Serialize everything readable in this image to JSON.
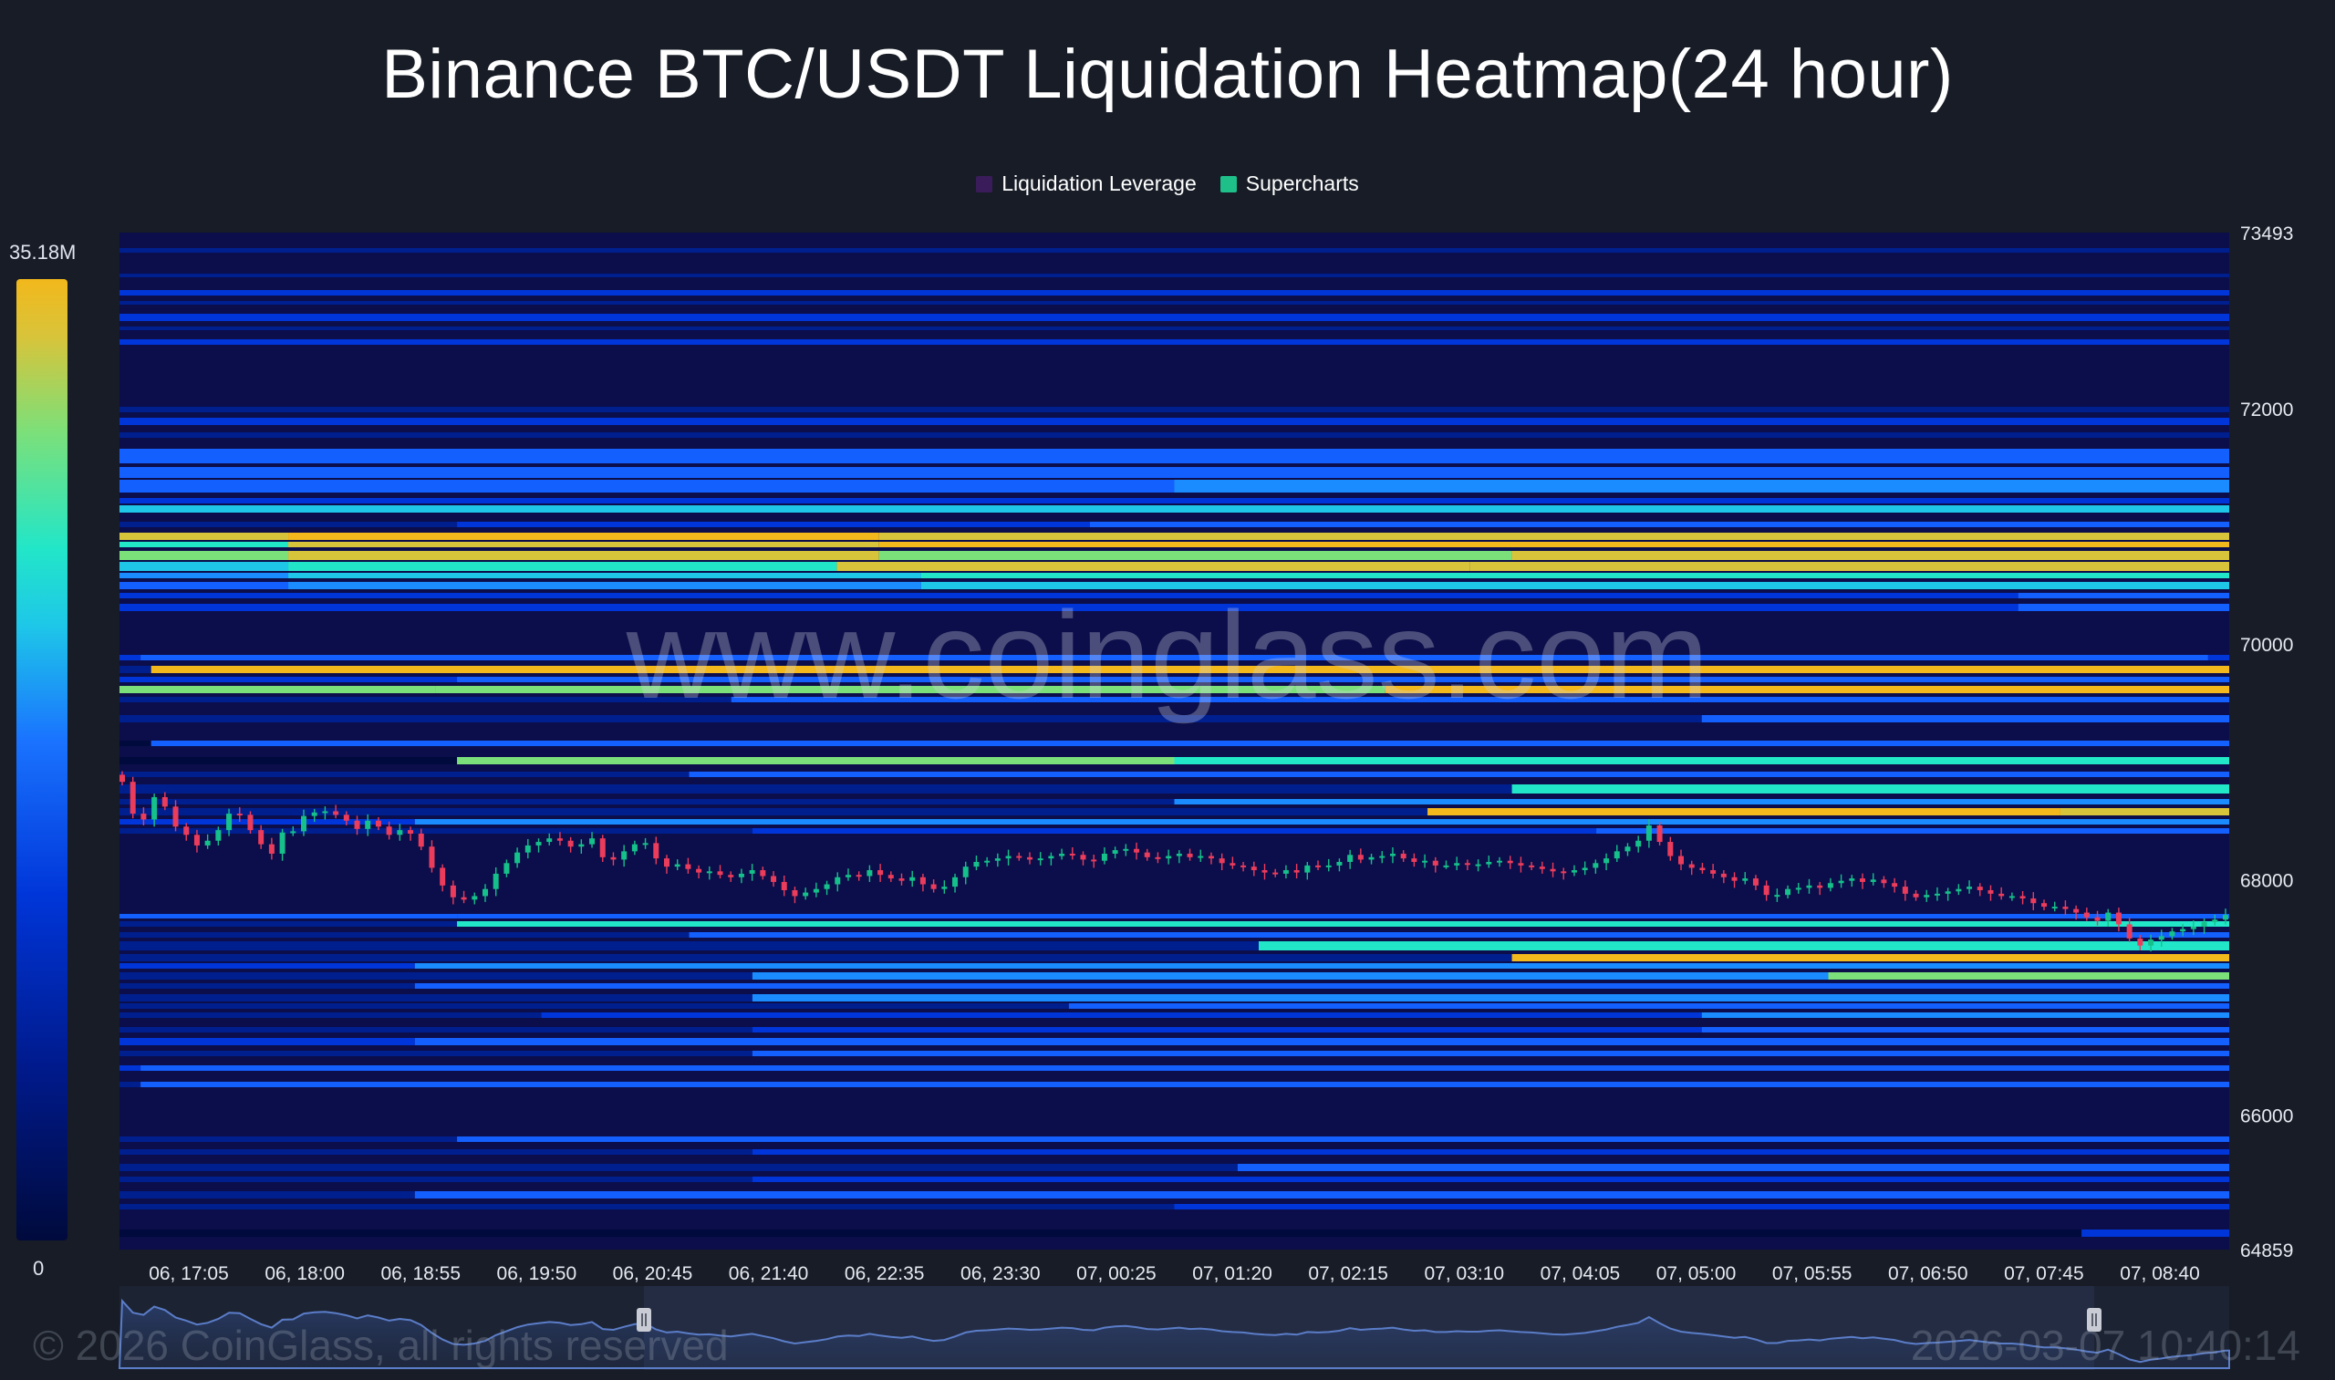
{
  "chart_data": {
    "type": "heatmap",
    "title": "Binance BTC/USDT Liquidation Heatmap(24 hour)",
    "legend": [
      {
        "name": "Liquidation Leverage",
        "color": "#3a1c5a"
      },
      {
        "name": "Supercharts",
        "color": "#1fbf8a"
      }
    ],
    "legend_placement": "top-center",
    "colorbar": {
      "max_label": "35.18M",
      "min_label": "0",
      "min": 0,
      "max": 35180000,
      "colors": [
        "#000a3c",
        "#001a8c",
        "#0036d9",
        "#1a73ff",
        "#1ec7e8",
        "#22e6c8",
        "#7be07a",
        "#d8c43a",
        "#f2b81c"
      ]
    },
    "y_axis": {
      "min": 64859,
      "max": 73493,
      "ticks": [
        "73493",
        "72000",
        "70000",
        "68000",
        "66000",
        "64859"
      ],
      "tick_values": [
        73493,
        72000,
        70000,
        68000,
        66000,
        64859
      ]
    },
    "x_axis": {
      "ticks": [
        "06, 17:05",
        "06, 18:00",
        "06, 18:55",
        "06, 19:50",
        "06, 20:45",
        "06, 21:40",
        "06, 22:35",
        "06, 23:30",
        "07, 00:25",
        "07, 01:20",
        "07, 02:15",
        "07, 03:10",
        "07, 04:05",
        "07, 05:00",
        "07, 05:55",
        "07, 06:50",
        "07, 07:45",
        "07, 08:40"
      ]
    },
    "grid": false,
    "price_close": [
      68830,
      68560,
      68510,
      68700,
      68620,
      68450,
      68380,
      68290,
      68330,
      68420,
      68560,
      68550,
      68420,
      68300,
      68220,
      68400,
      68410,
      68540,
      68570,
      68580,
      68550,
      68500,
      68430,
      68500,
      68450,
      68380,
      68420,
      68390,
      68280,
      68100,
      67950,
      67850,
      67830,
      67860,
      67920,
      68050,
      68140,
      68230,
      68290,
      68320,
      68350,
      68330,
      68280,
      68300,
      68350,
      68190,
      68170,
      68240,
      68300,
      68310,
      68180,
      68110,
      68130,
      68090,
      68060,
      68070,
      68040,
      68020,
      68050,
      68080,
      68030,
      67980,
      67910,
      67860,
      67890,
      67920,
      67960,
      68020,
      68040,
      68030,
      68080,
      68040,
      68010,
      67990,
      68020,
      67960,
      67920,
      67940,
      68020,
      68110,
      68150,
      68160,
      68180,
      68200,
      68190,
      68170,
      68180,
      68200,
      68220,
      68210,
      68170,
      68160,
      68220,
      68250,
      68260,
      68230,
      68190,
      68180,
      68200,
      68220,
      68190,
      68200,
      68180,
      68140,
      68120,
      68110,
      68080,
      68060,
      68050,
      68080,
      68060,
      68120,
      68110,
      68120,
      68150,
      68210,
      68170,
      68190,
      68200,
      68220,
      68180,
      68150,
      68160,
      68120,
      68120,
      68140,
      68130,
      68130,
      68150,
      68160,
      68140,
      68120,
      68110,
      68090,
      68070,
      68060,
      68080,
      68100,
      68140,
      68180,
      68240,
      68280,
      68330,
      68460,
      68320,
      68200,
      68130,
      68100,
      68080,
      68050,
      68020,
      67990,
      68010,
      67950,
      67870,
      67870,
      67920,
      67930,
      67950,
      67930,
      67970,
      67990,
      68010,
      67980,
      68000,
      67970,
      67940,
      67880,
      67850,
      67870,
      67880,
      67900,
      67920,
      67940,
      67910,
      67880,
      67860,
      67860,
      67840,
      67800,
      67770,
      67770,
      67750,
      67720,
      67680,
      67650,
      67720,
      67620,
      67500,
      67440,
      67490,
      67520,
      67560,
      67580,
      67600,
      67640,
      67660,
      67700
    ]
  },
  "watermark": "www.coinglass.com",
  "footer": {
    "copyright": "© 2026 CoinGlass, all rights reserved",
    "timestamp": "2026-03-07 10:40:14"
  }
}
